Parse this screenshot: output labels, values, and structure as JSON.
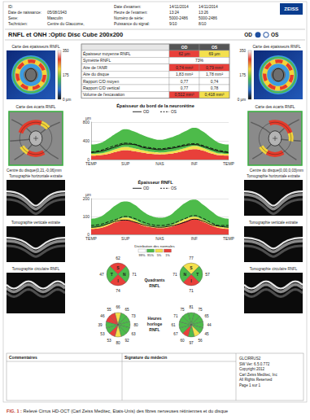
{
  "header": {
    "patient": [
      {
        "label": "ID:"
      },
      {
        "label": "Date de naissance:",
        "value": "05/08/1943"
      },
      {
        "label": "Sexe:",
        "value": "Masculin"
      },
      {
        "label": "Technicien:",
        "value": "Centre du Glaucome,"
      }
    ],
    "exam": [
      {
        "label": "Date d'examen:",
        "values": [
          "14/11/2014",
          "14/11/2014"
        ]
      },
      {
        "label": "Heure de l'examen:",
        "values": [
          "13:24",
          "13:26"
        ]
      },
      {
        "label": "Numéro de série:",
        "values": [
          "5000-2486",
          "5000-2486"
        ]
      },
      {
        "label": "Puissance du signal:",
        "values": [
          "9/10",
          "8/10"
        ]
      }
    ],
    "logo": "ZEISS"
  },
  "title": "RNFL et ONH :Optic Disc Cube 200x200",
  "eyes": [
    "OD",
    "OS"
  ],
  "thickness_maps": {
    "title": "Carte des épaisseurs RNFL",
    "colorbar": {
      "range": [
        0,
        350
      ],
      "ticks": [
        350,
        175,
        {
          "value": 0,
          "label": "0 µm"
        }
      ]
    }
  },
  "table": {
    "header": [
      "OD",
      "OS"
    ],
    "rows": [
      {
        "label": "Épaisseur moyenne RNFL",
        "cells": [
          {
            "text": "62 µm",
            "color": "#e8403a"
          },
          {
            "text": "69 µm",
            "color": "#f4e04d"
          }
        ]
      },
      {
        "label": "Symétrie RNFL",
        "cells": [
          {
            "text": "73%"
          }
        ]
      },
      {
        "label": "Aire de l'ANR",
        "cells": [
          {
            "text": "0,74 mm²",
            "color": "#e8403a"
          },
          {
            "text": "0,79 mm²",
            "color": "#e8403a"
          }
        ]
      },
      {
        "label": "Aire du disque",
        "cells": [
          {
            "text": "1,83 mm²"
          },
          {
            "text": "1,78 mm²"
          }
        ]
      },
      {
        "label": "Rapport C/D moyen",
        "cells": [
          {
            "text": "0,77"
          },
          {
            "text": "0,74"
          }
        ]
      },
      {
        "label": "Rapport C/D vertical",
        "cells": [
          {
            "text": "0,77"
          },
          {
            "text": "0,78"
          }
        ]
      },
      {
        "label": "Volume de l'excavation",
        "cells": [
          {
            "text": "0,512 mm³",
            "color": "#e8403a"
          },
          {
            "text": "0,418 mm³",
            "color": "#f4e04d"
          }
        ]
      }
    ]
  },
  "deviation_maps": {
    "title": "Carte des écarts RNFL",
    "disc_centers": [
      "Centre du disque(0,21,-0,06)mm",
      "Centre du disque(0,00,0,03)mm"
    ]
  },
  "tomograms": [
    "Tomographie horizontale extraite",
    "Tomographie verticale extraite",
    "Tomographie circulaire RNFL"
  ],
  "chart_data": [
    {
      "type": "line",
      "title": "Épaisseur du bord de la neurorétine",
      "y_label": "µm",
      "categories": [
        "TEMP",
        null,
        null,
        null,
        "SUP",
        null,
        null,
        null,
        "NAS",
        null,
        null,
        null,
        "INF",
        null,
        null,
        null,
        "TEMP"
      ],
      "ylim": [
        0,
        800
      ],
      "yticks": [
        0,
        400,
        800
      ],
      "grid": true,
      "bands": [
        {
          "color": "#e8403a",
          "values": [
            80,
            90,
            120,
            170,
            200,
            180,
            150,
            120,
            110,
            120,
            150,
            190,
            220,
            190,
            130,
            90,
            80
          ]
        },
        {
          "color": "#f4e04d",
          "values": [
            40,
            40,
            50,
            60,
            70,
            60,
            50,
            45,
            40,
            45,
            50,
            60,
            70,
            60,
            50,
            40,
            40
          ]
        },
        {
          "color": "#4dbb4a",
          "values": [
            200,
            220,
            280,
            340,
            380,
            360,
            320,
            290,
            270,
            290,
            320,
            360,
            390,
            350,
            280,
            220,
            200
          ]
        }
      ],
      "series": [
        {
          "name": "OD",
          "color": "#111111",
          "line_style": "solid",
          "values": [
            150,
            170,
            220,
            280,
            330,
            320,
            260,
            230,
            210,
            230,
            260,
            300,
            320,
            280,
            220,
            170,
            150
          ]
        },
        {
          "name": "OS",
          "color": "#111111",
          "line_style": "dashed",
          "values": [
            160,
            190,
            250,
            310,
            350,
            330,
            280,
            250,
            230,
            250,
            280,
            320,
            340,
            300,
            240,
            190,
            160
          ]
        }
      ]
    },
    {
      "type": "line",
      "title": "Épaisseur RNFL",
      "y_label": "µm",
      "categories": [
        "TEMP",
        null,
        null,
        null,
        "SUP",
        null,
        null,
        null,
        "NAS",
        null,
        null,
        null,
        "INF",
        null,
        null,
        null,
        "TEMP"
      ],
      "ylim": [
        0,
        200
      ],
      "yticks": [
        0,
        100,
        200
      ],
      "grid": true,
      "bands": [
        {
          "color": "#e8403a",
          "values": [
            30,
            35,
            50,
            70,
            80,
            70,
            50,
            40,
            35,
            40,
            55,
            75,
            85,
            70,
            50,
            35,
            30
          ]
        },
        {
          "color": "#f4e04d",
          "values": [
            8,
            8,
            10,
            12,
            14,
            12,
            10,
            8,
            8,
            8,
            10,
            12,
            14,
            12,
            10,
            8,
            8
          ]
        },
        {
          "color": "#4dbb4a",
          "values": [
            50,
            55,
            70,
            85,
            90,
            85,
            70,
            55,
            50,
            55,
            75,
            90,
            95,
            85,
            70,
            55,
            50
          ]
        }
      ],
      "series": [
        {
          "name": "OD",
          "color": "#111111",
          "line_style": "solid",
          "values": [
            40,
            45,
            60,
            75,
            80,
            70,
            55,
            45,
            40,
            45,
            55,
            70,
            85,
            75,
            55,
            45,
            40
          ]
        },
        {
          "name": "OS",
          "color": "#111111",
          "line_style": "dashed",
          "values": [
            50,
            55,
            70,
            85,
            100,
            90,
            70,
            55,
            50,
            55,
            70,
            90,
            105,
            90,
            65,
            50,
            50
          ]
        }
      ]
    }
  ],
  "normative_legend": {
    "title": "Distribution des normales",
    "items": [
      {
        "label": "99%",
        "color": "#ffffff"
      },
      {
        "label": "95%",
        "color": "#4dbb4a"
      },
      {
        "label": "5%",
        "color": "#f4e04d"
      },
      {
        "label": "1%",
        "color": "#e8403a"
      }
    ]
  },
  "quadrants": {
    "title": "Quadrants RNFL",
    "circles": [
      [
        {
          "label": "S",
          "value": 62,
          "color": "#e8403a"
        },
        {
          "label": "N",
          "value": 71,
          "color": "#4dbb4a"
        },
        {
          "label": "I",
          "value": 74,
          "color": "#e8403a"
        },
        {
          "label": "T",
          "value": 47,
          "color": "#4dbb4a"
        }
      ],
      [
        {
          "label": "S",
          "value": 77,
          "color": "#f4e04d"
        },
        {
          "label": "T",
          "value": 57,
          "color": "#4dbb4a"
        },
        {
          "label": "I",
          "value": 71,
          "color": "#e8403a"
        },
        {
          "label": "N",
          "value": 71,
          "color": "#4dbb4a"
        }
      ]
    ]
  },
  "clock_hours": {
    "title": "Heures horloge RNFL",
    "circles": [
      [
        {
          "value": 66,
          "color": "#f4e04d"
        },
        {
          "value": 65,
          "color": "#4dbb4a"
        },
        {
          "value": 73,
          "color": "#4dbb4a"
        },
        {
          "value": 80,
          "color": "#4dbb4a"
        },
        {
          "value": 63,
          "color": "#4dbb4a"
        },
        {
          "value": 92,
          "color": "#4dbb4a"
        },
        {
          "value": 80,
          "color": "#f4e04d"
        },
        {
          "value": 53,
          "color": "#e8403a"
        },
        {
          "value": 53,
          "color": "#4dbb4a"
        },
        {
          "value": 39,
          "color": "#4dbb4a"
        },
        {
          "value": 46,
          "color": "#e8403a"
        },
        {
          "value": 55,
          "color": "#e8403a"
        }
      ],
      [
        {
          "value": 81,
          "color": "#4dbb4a"
        },
        {
          "value": 75,
          "color": "#4dbb4a"
        },
        {
          "value": 65,
          "color": "#4dbb4a"
        },
        {
          "value": 44,
          "color": "#4dbb4a"
        },
        {
          "value": 45,
          "color": "#4dbb4a"
        },
        {
          "value": 56,
          "color": "#f4e04d"
        },
        {
          "value": 97,
          "color": "#4dbb4a"
        },
        {
          "value": 60,
          "color": "#e8403a"
        },
        {
          "value": 67,
          "color": "#4dbb4a"
        },
        {
          "value": 61,
          "color": "#4dbb4a"
        },
        {
          "value": 71,
          "color": "#4dbb4a"
        },
        {
          "value": 75,
          "color": "#4dbb4a"
        }
      ]
    ]
  },
  "footer": {
    "comments": "Commentaires",
    "signature": "Signature du médecin",
    "software": [
      "GLCIRRUS2",
      "SW Ver: 6.5.0.772",
      "Copyright 2012",
      "Carl Zeiss Meditec, Inc",
      "All Rights Reserved",
      "Page 1 sur 1"
    ]
  },
  "caption": {
    "label": "FIG. 1 :",
    "text": " Relevé Cirrus HD-OCT (Carl Zeiss Meditec, Etats-Unis) des fibres nerveuses rétiniennes et du disque"
  }
}
